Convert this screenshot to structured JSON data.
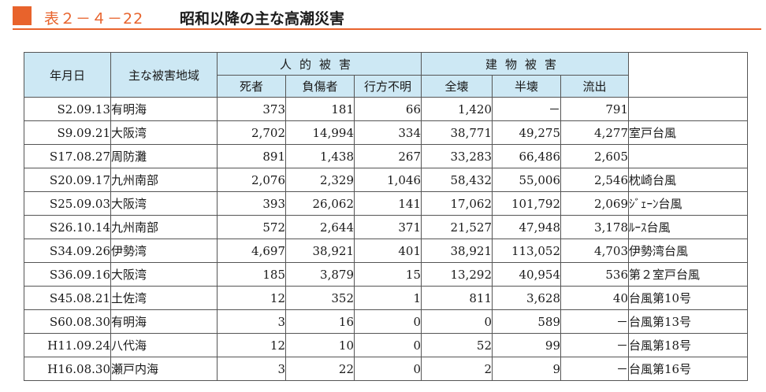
{
  "title": {
    "number": "表２－４－22",
    "text": "昭和以降の主な高潮災害"
  },
  "colors": {
    "accent": "#e8632c",
    "header_bg": "#cde8f4"
  },
  "table": {
    "headers": {
      "date": "年月日",
      "area": "主な被害地域",
      "human_group": "人的被害",
      "building_group": "建物被害",
      "dead": "死者",
      "injured": "負傷者",
      "missing": "行方不明",
      "total_collapse": "全壊",
      "half_collapse": "半壊",
      "washed_away": "流出"
    },
    "rows": [
      {
        "date": "S2.09.13",
        "area": "有明海",
        "dead": "373",
        "injured": "181",
        "missing": "66",
        "total": "1,420",
        "half": "－",
        "washed": "791",
        "note": ""
      },
      {
        "date": "S9.09.21",
        "area": "大阪湾",
        "dead": "2,702",
        "injured": "14,994",
        "missing": "334",
        "total": "38,771",
        "half": "49,275",
        "washed": "4,277",
        "note": "室戸台風"
      },
      {
        "date": "S17.08.27",
        "area": "周防灘",
        "dead": "891",
        "injured": "1,438",
        "missing": "267",
        "total": "33,283",
        "half": "66,486",
        "washed": "2,605",
        "note": ""
      },
      {
        "date": "S20.09.17",
        "area": "九州南部",
        "dead": "2,076",
        "injured": "2,329",
        "missing": "1,046",
        "total": "58,432",
        "half": "55,006",
        "washed": "2,546",
        "note": "枕崎台風"
      },
      {
        "date": "S25.09.03",
        "area": "大阪湾",
        "dead": "393",
        "injured": "26,062",
        "missing": "141",
        "total": "17,062",
        "half": "101,792",
        "washed": "2,069",
        "note": "ｼﾞｪｰﾝ台風"
      },
      {
        "date": "S26.10.14",
        "area": "九州南部",
        "dead": "572",
        "injured": "2,644",
        "missing": "371",
        "total": "21,527",
        "half": "47,948",
        "washed": "3,178",
        "note": "ﾙｰｽ台風"
      },
      {
        "date": "S34.09.26",
        "area": "伊勢湾",
        "dead": "4,697",
        "injured": "38,921",
        "missing": "401",
        "total": "38,921",
        "half": "113,052",
        "washed": "4,703",
        "note": "伊勢湾台風"
      },
      {
        "date": "S36.09.16",
        "area": "大阪湾",
        "dead": "185",
        "injured": "3,879",
        "missing": "15",
        "total": "13,292",
        "half": "40,954",
        "washed": "536",
        "note": "第２室戸台風"
      },
      {
        "date": "S45.08.21",
        "area": "土佐湾",
        "dead": "12",
        "injured": "352",
        "missing": "1",
        "total": "811",
        "half": "3,628",
        "washed": "40",
        "note": "台風第10号"
      },
      {
        "date": "S60.08.30",
        "area": "有明海",
        "dead": "3",
        "injured": "16",
        "missing": "0",
        "total": "0",
        "half": "589",
        "washed": "－",
        "note": "台風第13号"
      },
      {
        "date": "H11.09.24",
        "area": "八代海",
        "dead": "12",
        "injured": "10",
        "missing": "0",
        "total": "52",
        "half": "99",
        "washed": "－",
        "note": "台風第18号"
      },
      {
        "date": "H16.08.30",
        "area": "瀬戸内海",
        "dead": "3",
        "injured": "22",
        "missing": "0",
        "total": "2",
        "half": "9",
        "washed": "－",
        "note": "台風第16号"
      }
    ]
  }
}
